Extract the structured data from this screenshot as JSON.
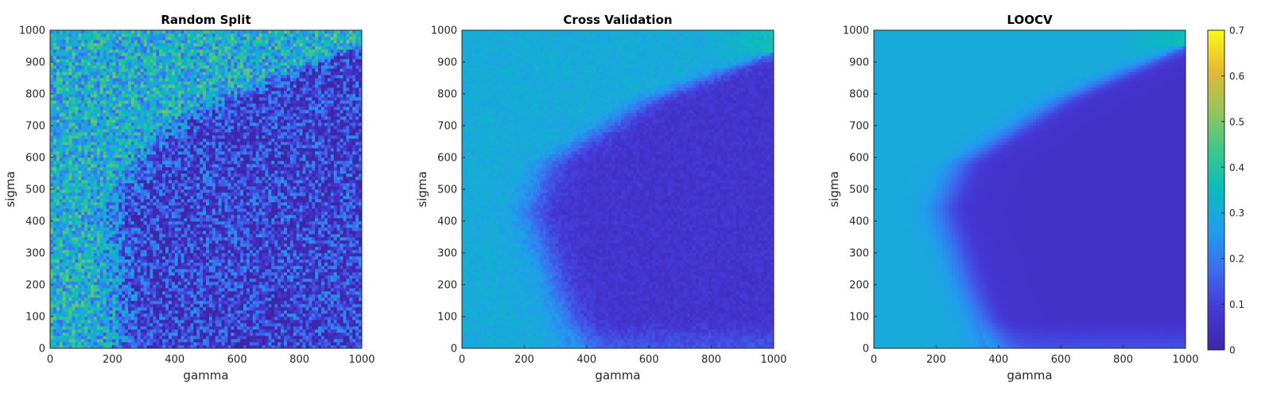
{
  "chart_data": [
    {
      "type": "heatmap",
      "title": "Random Split",
      "xlabel": "gamma",
      "ylabel": "sigma",
      "xlim": [
        0,
        1000
      ],
      "ylim": [
        0,
        1000
      ],
      "xticks": [
        0,
        200,
        400,
        600,
        800,
        1000
      ],
      "yticks": [
        0,
        100,
        200,
        300,
        400,
        500,
        600,
        700,
        800,
        900,
        1000
      ],
      "boundary_gamma_vs_sigma": [
        [
          220,
          0
        ],
        [
          230,
          150
        ],
        [
          210,
          420
        ],
        [
          300,
          620
        ],
        [
          500,
          760
        ],
        [
          1000,
          960
        ]
      ],
      "value_above_boundary": 0.32,
      "value_below_boundary": 0.09,
      "noise": "high"
    },
    {
      "type": "heatmap",
      "title": "Cross Validation",
      "xlabel": "gamma",
      "ylabel": "sigma",
      "xlim": [
        0,
        1000
      ],
      "ylim": [
        0,
        1000
      ],
      "xticks": [
        0,
        200,
        400,
        600,
        800,
        1000
      ],
      "yticks": [
        0,
        100,
        200,
        300,
        400,
        500,
        600,
        700,
        800,
        900,
        1000
      ],
      "boundary_gamma_vs_sigma": [
        [
          380,
          0
        ],
        [
          300,
          200
        ],
        [
          220,
          430
        ],
        [
          280,
          580
        ],
        [
          600,
          780
        ],
        [
          1000,
          930
        ]
      ],
      "value_above_boundary": 0.3,
      "value_below_boundary": 0.07,
      "noise": "low"
    },
    {
      "type": "heatmap",
      "title": "LOOCV",
      "xlabel": "gamma",
      "ylabel": "sigma",
      "xlim": [
        0,
        1000
      ],
      "ylim": [
        0,
        1000
      ],
      "xticks": [
        0,
        200,
        400,
        600,
        800,
        1000
      ],
      "yticks": [
        0,
        100,
        200,
        300,
        400,
        500,
        600,
        700,
        800,
        900,
        1000
      ],
      "boundary_gamma_vs_sigma": [
        [
          390,
          0
        ],
        [
          300,
          200
        ],
        [
          215,
          440
        ],
        [
          280,
          580
        ],
        [
          600,
          780
        ],
        [
          1000,
          950
        ]
      ],
      "value_above_boundary": 0.3,
      "value_below_boundary": 0.06,
      "noise": "none"
    }
  ],
  "colorbar": {
    "min": 0,
    "max": 0.7,
    "ticks": [
      "0",
      "0.1",
      "0.2",
      "0.3",
      "0.4",
      "0.5",
      "0.6",
      "0.7"
    ],
    "colormap": "parula",
    "colors": [
      "#3e26a8",
      "#4538d7",
      "#3c6df0",
      "#219eec",
      "#0bbbbd",
      "#3dc68a",
      "#96c55a",
      "#e5b933",
      "#f9fb15"
    ]
  }
}
